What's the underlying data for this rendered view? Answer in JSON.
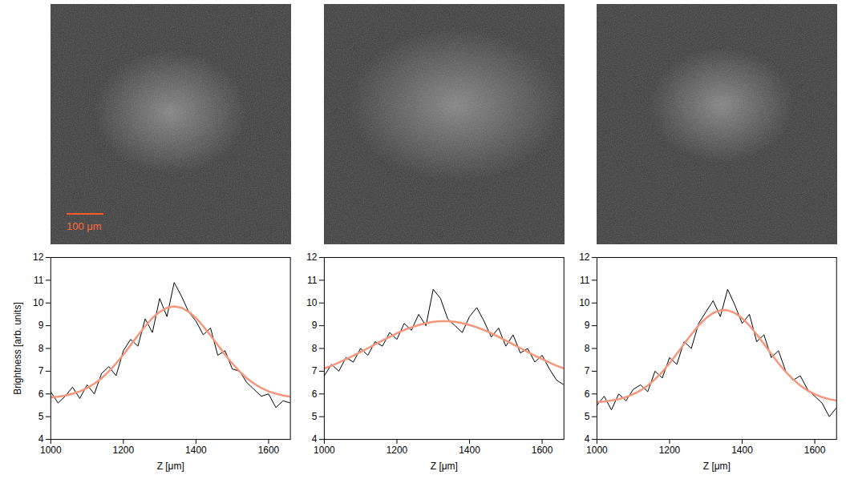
{
  "images": {
    "scale_bar_label": "100 μm"
  },
  "chart_data": [
    {
      "type": "line",
      "xlabel": "Z [μm]",
      "ylabel": "Brightness [arb. units]",
      "x": [
        1000,
        1020,
        1040,
        1060,
        1080,
        1100,
        1120,
        1140,
        1160,
        1180,
        1200,
        1220,
        1240,
        1260,
        1280,
        1300,
        1320,
        1340,
        1360,
        1380,
        1400,
        1420,
        1440,
        1460,
        1480,
        1500,
        1520,
        1540,
        1560,
        1580,
        1600,
        1620,
        1640,
        1660
      ],
      "series": [
        {
          "color": "#000000",
          "values": [
            6.1,
            5.6,
            5.9,
            6.3,
            5.8,
            6.4,
            6.0,
            6.9,
            7.2,
            6.8,
            7.9,
            8.4,
            8.1,
            9.3,
            8.7,
            10.2,
            9.4,
            10.9,
            10.3,
            9.6,
            9.2,
            8.6,
            8.9,
            7.7,
            7.9,
            7.1,
            7.0,
            6.5,
            6.2,
            5.9,
            6.0,
            5.4,
            5.7,
            5.6
          ]
        },
        {
          "color": "#f5967a",
          "values": [
            5.85,
            5.88,
            5.93,
            6.01,
            6.11,
            6.26,
            6.45,
            6.69,
            6.99,
            7.34,
            7.73,
            8.15,
            8.57,
            8.98,
            9.34,
            9.61,
            9.79,
            9.85,
            9.79,
            9.61,
            9.34,
            8.98,
            8.57,
            8.15,
            7.73,
            7.34,
            6.99,
            6.69,
            6.45,
            6.26,
            6.11,
            6.01,
            5.93,
            5.88
          ]
        }
      ],
      "xlim": [
        1000,
        1660
      ],
      "ylim": [
        4,
        12
      ],
      "xticks": [
        1000,
        1200,
        1400,
        1600
      ],
      "yticks": [
        4,
        5,
        6,
        7,
        8,
        9,
        10,
        11,
        12
      ]
    },
    {
      "type": "line",
      "xlabel": "Z [μm]",
      "x": [
        1000,
        1020,
        1040,
        1060,
        1080,
        1100,
        1120,
        1140,
        1160,
        1180,
        1200,
        1220,
        1240,
        1260,
        1280,
        1300,
        1320,
        1340,
        1360,
        1380,
        1400,
        1420,
        1440,
        1460,
        1480,
        1500,
        1520,
        1540,
        1560,
        1580,
        1600,
        1620,
        1640,
        1660
      ],
      "series": [
        {
          "color": "#000000",
          "values": [
            6.8,
            7.3,
            7.0,
            7.6,
            7.4,
            8.0,
            7.7,
            8.3,
            8.1,
            8.7,
            8.4,
            9.1,
            8.8,
            9.5,
            9.0,
            10.6,
            10.2,
            9.3,
            9.0,
            8.7,
            9.4,
            9.8,
            9.2,
            8.5,
            8.9,
            8.1,
            8.6,
            7.8,
            8.0,
            7.4,
            7.7,
            7.1,
            6.6,
            6.4
          ]
        },
        {
          "color": "#f5967a",
          "values": [
            7.12,
            7.24,
            7.38,
            7.53,
            7.68,
            7.85,
            8.01,
            8.18,
            8.35,
            8.51,
            8.67,
            8.81,
            8.93,
            9.03,
            9.11,
            9.17,
            9.2,
            9.2,
            9.17,
            9.11,
            9.03,
            8.93,
            8.81,
            8.67,
            8.51,
            8.35,
            8.18,
            8.01,
            7.85,
            7.68,
            7.53,
            7.38,
            7.24,
            7.12
          ]
        }
      ],
      "xlim": [
        1000,
        1660
      ],
      "ylim": [
        4,
        12
      ],
      "xticks": [
        1000,
        1200,
        1400,
        1600
      ],
      "yticks": [
        4,
        5,
        6,
        7,
        8,
        9,
        10,
        11,
        12
      ]
    },
    {
      "type": "line",
      "xlabel": "Z [μm]",
      "x": [
        1000,
        1020,
        1040,
        1060,
        1080,
        1100,
        1120,
        1140,
        1160,
        1180,
        1200,
        1220,
        1240,
        1260,
        1280,
        1300,
        1320,
        1340,
        1360,
        1380,
        1400,
        1420,
        1440,
        1460,
        1480,
        1500,
        1520,
        1540,
        1560,
        1580,
        1600,
        1620,
        1640,
        1660
      ],
      "series": [
        {
          "color": "#000000",
          "values": [
            5.5,
            5.9,
            5.3,
            6.0,
            5.7,
            6.2,
            6.4,
            6.1,
            7.0,
            6.7,
            7.6,
            7.3,
            8.3,
            8.0,
            9.1,
            9.6,
            10.1,
            9.4,
            10.6,
            9.9,
            9.1,
            9.5,
            8.3,
            8.6,
            7.6,
            7.9,
            7.0,
            6.6,
            6.8,
            6.2,
            5.9,
            5.6,
            5.0,
            5.4
          ]
        },
        {
          "color": "#f5967a",
          "values": [
            5.64,
            5.67,
            5.71,
            5.77,
            5.86,
            5.99,
            6.15,
            6.37,
            6.65,
            6.97,
            7.35,
            7.76,
            8.2,
            8.62,
            9.01,
            9.33,
            9.56,
            9.68,
            9.68,
            9.56,
            9.33,
            9.01,
            8.62,
            8.2,
            7.76,
            7.35,
            6.97,
            6.65,
            6.37,
            6.15,
            5.99,
            5.86,
            5.77,
            5.71
          ]
        }
      ],
      "xlim": [
        1000,
        1660
      ],
      "ylim": [
        4,
        12
      ],
      "xticks": [
        1000,
        1200,
        1400,
        1600
      ],
      "yticks": [
        4,
        5,
        6,
        7,
        8,
        9,
        10,
        11,
        12
      ]
    }
  ]
}
